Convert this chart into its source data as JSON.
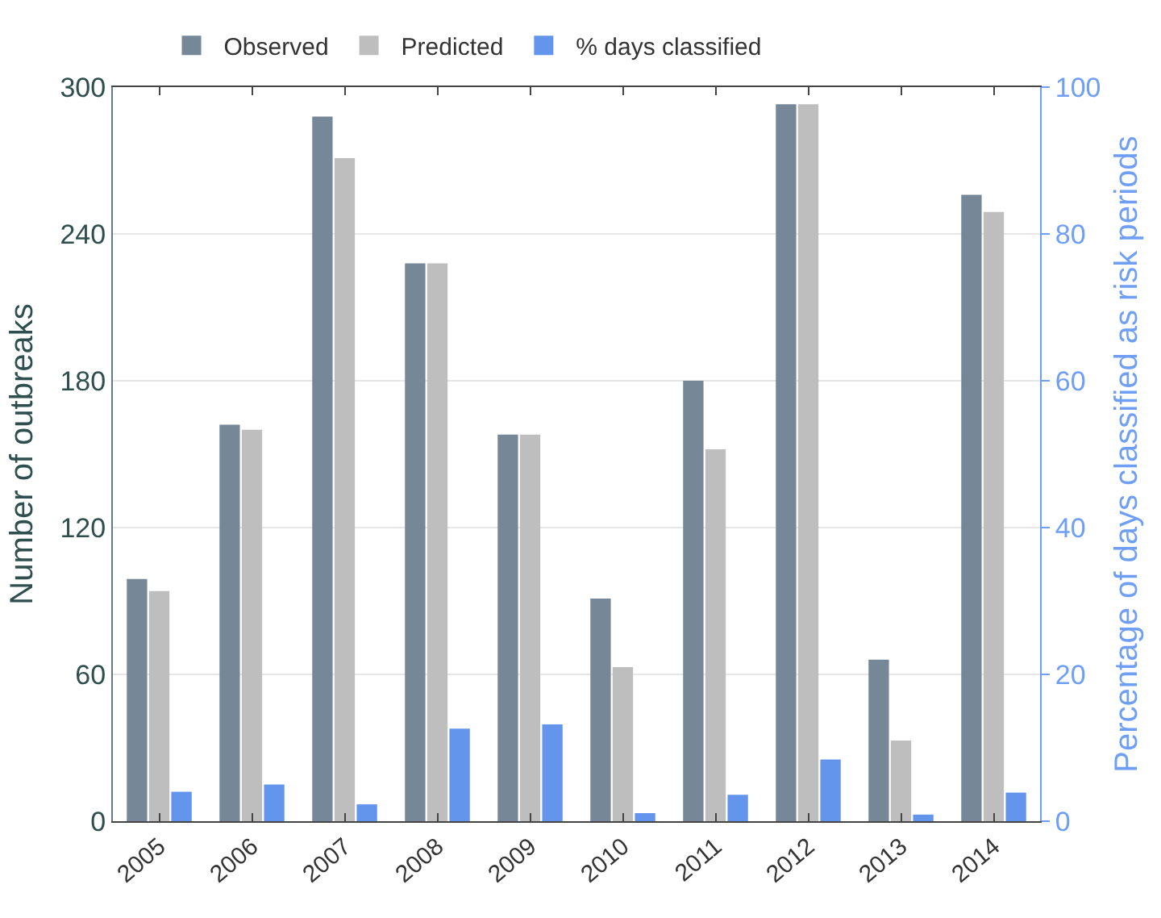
{
  "chart_data": {
    "type": "bar",
    "categories": [
      "2005",
      "2006",
      "2007",
      "2008",
      "2009",
      "2010",
      "2011",
      "2012",
      "2013",
      "2014"
    ],
    "ylabel": "Number of outbreaks",
    "y2label": "Percentage of days classified as risk periods",
    "ylim": [
      0,
      300
    ],
    "yticks": [
      0,
      60,
      120,
      180,
      240,
      300
    ],
    "y2lim": [
      0,
      100
    ],
    "y2ticks": [
      0,
      20,
      40,
      60,
      80,
      100
    ],
    "grid": "y",
    "legend": "top",
    "series": [
      {
        "name": "Observed",
        "color": "#768797",
        "values": [
          99,
          162,
          288,
          228,
          158,
          91,
          180,
          293,
          66,
          256
        ]
      },
      {
        "name": "Predicted",
        "color": "#bebebe",
        "values": [
          94,
          160,
          271,
          228,
          158,
          63,
          152,
          293,
          33,
          249
        ]
      },
      {
        "name": "% days classified",
        "color": "#6495ed",
        "axis": "y2",
        "values": [
          4.0,
          5.0,
          2.3,
          12.6,
          13.2,
          1.1,
          3.6,
          8.4,
          0.9,
          3.9
        ]
      }
    ]
  }
}
